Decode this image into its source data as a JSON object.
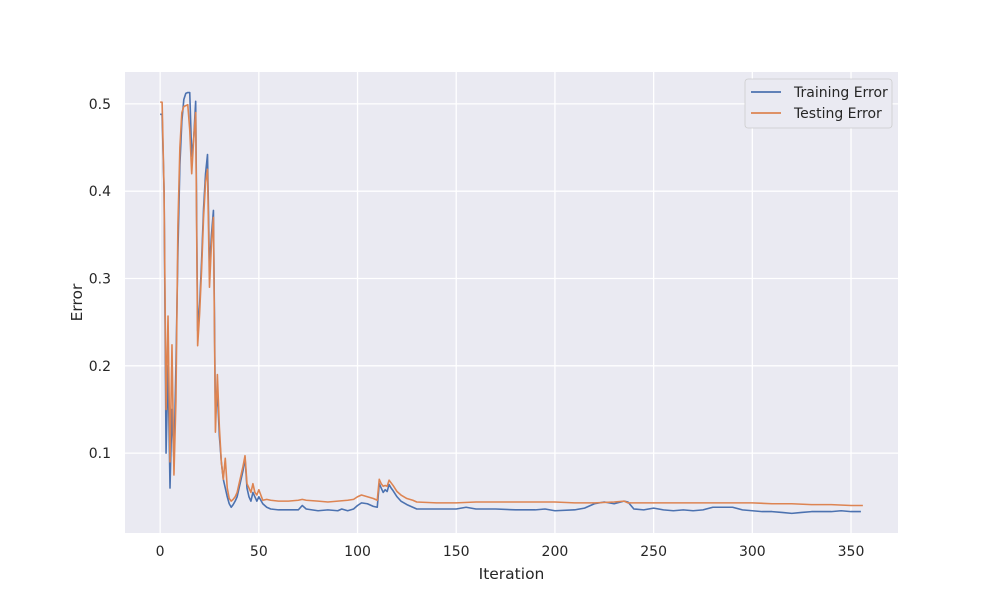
{
  "chart_data": {
    "type": "line",
    "title": "",
    "xlabel": "Iteration",
    "ylabel": "Error",
    "xlim": [
      -17.8,
      373.8
    ],
    "ylim": [
      0.0085,
      0.5365
    ],
    "xticks": [
      0,
      50,
      100,
      150,
      200,
      250,
      300,
      350
    ],
    "xtick_labels": [
      "0",
      "50",
      "100",
      "150",
      "200",
      "250",
      "300",
      "350"
    ],
    "yticks": [
      0.1,
      0.2,
      0.3,
      0.4,
      0.5
    ],
    "ytick_labels": [
      "0.1",
      "0.2",
      "0.3",
      "0.4",
      "0.5"
    ],
    "grid": true,
    "legend_position": "top-right",
    "series": [
      {
        "name": "Training Error",
        "color": "#4c72b0",
        "points": [
          [
            0,
            0.488
          ],
          [
            1,
            0.488
          ],
          [
            2,
            0.4
          ],
          [
            3,
            0.1
          ],
          [
            4,
            0.2
          ],
          [
            5,
            0.06
          ],
          [
            6,
            0.15
          ],
          [
            7,
            0.09
          ],
          [
            8,
            0.2
          ],
          [
            9,
            0.33
          ],
          [
            10,
            0.43
          ],
          [
            11,
            0.48
          ],
          [
            12,
            0.505
          ],
          [
            13,
            0.512
          ],
          [
            14,
            0.513
          ],
          [
            15,
            0.513
          ],
          [
            16,
            0.44
          ],
          [
            17,
            0.46
          ],
          [
            18,
            0.503
          ],
          [
            19,
            0.24
          ],
          [
            20,
            0.27
          ],
          [
            21,
            0.32
          ],
          [
            22,
            0.38
          ],
          [
            23,
            0.42
          ],
          [
            24,
            0.442
          ],
          [
            25,
            0.31
          ],
          [
            26,
            0.35
          ],
          [
            27,
            0.378
          ],
          [
            28,
            0.14
          ],
          [
            29,
            0.17
          ],
          [
            30,
            0.12
          ],
          [
            31,
            0.09
          ],
          [
            32,
            0.07
          ],
          [
            33,
            0.06
          ],
          [
            34,
            0.05
          ],
          [
            35,
            0.042
          ],
          [
            36,
            0.038
          ],
          [
            37,
            0.041
          ],
          [
            38,
            0.045
          ],
          [
            39,
            0.05
          ],
          [
            40,
            0.06
          ],
          [
            41,
            0.07
          ],
          [
            42,
            0.08
          ],
          [
            43,
            0.095
          ],
          [
            44,
            0.06
          ],
          [
            45,
            0.05
          ],
          [
            46,
            0.045
          ],
          [
            47,
            0.055
          ],
          [
            48,
            0.05
          ],
          [
            49,
            0.045
          ],
          [
            50,
            0.05
          ],
          [
            52,
            0.042
          ],
          [
            54,
            0.038
          ],
          [
            56,
            0.036
          ],
          [
            60,
            0.035
          ],
          [
            65,
            0.035
          ],
          [
            70,
            0.035
          ],
          [
            72,
            0.04
          ],
          [
            74,
            0.036
          ],
          [
            80,
            0.034
          ],
          [
            85,
            0.035
          ],
          [
            90,
            0.034
          ],
          [
            92,
            0.036
          ],
          [
            95,
            0.034
          ],
          [
            98,
            0.036
          ],
          [
            100,
            0.04
          ],
          [
            102,
            0.043
          ],
          [
            105,
            0.042
          ],
          [
            108,
            0.039
          ],
          [
            110,
            0.038
          ],
          [
            111,
            0.065
          ],
          [
            112,
            0.06
          ],
          [
            113,
            0.055
          ],
          [
            114,
            0.058
          ],
          [
            115,
            0.056
          ],
          [
            116,
            0.064
          ],
          [
            117,
            0.06
          ],
          [
            118,
            0.057
          ],
          [
            120,
            0.05
          ],
          [
            122,
            0.045
          ],
          [
            125,
            0.041
          ],
          [
            128,
            0.038
          ],
          [
            130,
            0.036
          ],
          [
            135,
            0.036
          ],
          [
            140,
            0.036
          ],
          [
            150,
            0.036
          ],
          [
            155,
            0.038
          ],
          [
            160,
            0.036
          ],
          [
            170,
            0.036
          ],
          [
            180,
            0.035
          ],
          [
            190,
            0.035
          ],
          [
            195,
            0.036
          ],
          [
            200,
            0.034
          ],
          [
            210,
            0.035
          ],
          [
            215,
            0.037
          ],
          [
            220,
            0.042
          ],
          [
            225,
            0.044
          ],
          [
            230,
            0.042
          ],
          [
            235,
            0.045
          ],
          [
            237,
            0.044
          ],
          [
            240,
            0.036
          ],
          [
            245,
            0.035
          ],
          [
            250,
            0.037
          ],
          [
            255,
            0.035
          ],
          [
            260,
            0.034
          ],
          [
            265,
            0.035
          ],
          [
            270,
            0.034
          ],
          [
            275,
            0.035
          ],
          [
            280,
            0.038
          ],
          [
            285,
            0.038
          ],
          [
            290,
            0.038
          ],
          [
            295,
            0.035
          ],
          [
            300,
            0.034
          ],
          [
            305,
            0.033
          ],
          [
            310,
            0.033
          ],
          [
            315,
            0.032
          ],
          [
            320,
            0.031
          ],
          [
            325,
            0.032
          ],
          [
            330,
            0.033
          ],
          [
            335,
            0.033
          ],
          [
            340,
            0.033
          ],
          [
            345,
            0.034
          ],
          [
            350,
            0.033
          ],
          [
            355,
            0.033
          ]
        ]
      },
      {
        "name": "Testing Error",
        "color": "#dd8452",
        "points": [
          [
            0,
            0.502
          ],
          [
            1,
            0.502
          ],
          [
            2,
            0.4
          ],
          [
            3,
            0.15
          ],
          [
            4,
            0.257
          ],
          [
            5,
            0.09
          ],
          [
            6,
            0.224
          ],
          [
            7,
            0.075
          ],
          [
            8,
            0.16
          ],
          [
            9,
            0.36
          ],
          [
            10,
            0.45
          ],
          [
            11,
            0.49
          ],
          [
            12,
            0.497
          ],
          [
            13,
            0.498
          ],
          [
            14,
            0.499
          ],
          [
            15,
            0.47
          ],
          [
            16,
            0.42
          ],
          [
            17,
            0.46
          ],
          [
            18,
            0.49
          ],
          [
            19,
            0.223
          ],
          [
            20,
            0.26
          ],
          [
            21,
            0.31
          ],
          [
            22,
            0.37
          ],
          [
            23,
            0.41
          ],
          [
            24,
            0.425
          ],
          [
            25,
            0.29
          ],
          [
            26,
            0.34
          ],
          [
            27,
            0.37
          ],
          [
            28,
            0.124
          ],
          [
            29,
            0.19
          ],
          [
            30,
            0.13
          ],
          [
            31,
            0.09
          ],
          [
            32,
            0.07
          ],
          [
            33,
            0.094
          ],
          [
            34,
            0.06
          ],
          [
            35,
            0.048
          ],
          [
            36,
            0.045
          ],
          [
            37,
            0.047
          ],
          [
            38,
            0.05
          ],
          [
            39,
            0.055
          ],
          [
            40,
            0.065
          ],
          [
            41,
            0.075
          ],
          [
            42,
            0.085
          ],
          [
            43,
            0.097
          ],
          [
            44,
            0.065
          ],
          [
            45,
            0.06
          ],
          [
            46,
            0.055
          ],
          [
            47,
            0.065
          ],
          [
            48,
            0.055
          ],
          [
            49,
            0.052
          ],
          [
            50,
            0.058
          ],
          [
            52,
            0.046
          ],
          [
            54,
            0.047
          ],
          [
            56,
            0.046
          ],
          [
            60,
            0.045
          ],
          [
            65,
            0.045
          ],
          [
            70,
            0.046
          ],
          [
            72,
            0.047
          ],
          [
            74,
            0.046
          ],
          [
            80,
            0.045
          ],
          [
            85,
            0.044
          ],
          [
            90,
            0.045
          ],
          [
            95,
            0.046
          ],
          [
            98,
            0.047
          ],
          [
            100,
            0.05
          ],
          [
            102,
            0.052
          ],
          [
            105,
            0.05
          ],
          [
            108,
            0.048
          ],
          [
            110,
            0.046
          ],
          [
            111,
            0.07
          ],
          [
            112,
            0.065
          ],
          [
            113,
            0.062
          ],
          [
            114,
            0.063
          ],
          [
            115,
            0.062
          ],
          [
            116,
            0.069
          ],
          [
            117,
            0.066
          ],
          [
            118,
            0.063
          ],
          [
            120,
            0.056
          ],
          [
            122,
            0.052
          ],
          [
            125,
            0.048
          ],
          [
            128,
            0.046
          ],
          [
            130,
            0.044
          ],
          [
            140,
            0.043
          ],
          [
            150,
            0.043
          ],
          [
            160,
            0.044
          ],
          [
            170,
            0.044
          ],
          [
            180,
            0.044
          ],
          [
            190,
            0.044
          ],
          [
            200,
            0.044
          ],
          [
            210,
            0.043
          ],
          [
            220,
            0.043
          ],
          [
            230,
            0.044
          ],
          [
            235,
            0.045
          ],
          [
            237,
            0.043
          ],
          [
            240,
            0.043
          ],
          [
            250,
            0.043
          ],
          [
            260,
            0.043
          ],
          [
            270,
            0.043
          ],
          [
            280,
            0.043
          ],
          [
            290,
            0.043
          ],
          [
            300,
            0.043
          ],
          [
            310,
            0.042
          ],
          [
            320,
            0.042
          ],
          [
            330,
            0.041
          ],
          [
            340,
            0.041
          ],
          [
            350,
            0.04
          ],
          [
            356,
            0.04
          ]
        ]
      }
    ]
  }
}
